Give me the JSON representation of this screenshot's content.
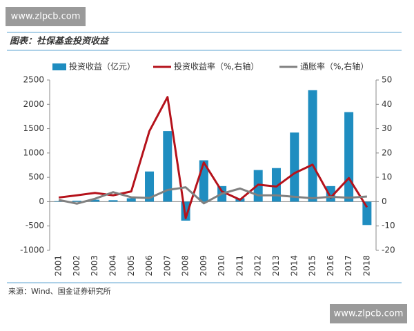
{
  "watermark": "www.zlpcb.com",
  "source": "来源：Wind、国金证券研究所",
  "chart_data": {
    "type": "bar",
    "title": "图表：社保基金投资收益",
    "categories": [
      "2001",
      "2002",
      "2003",
      "2004",
      "2005",
      "2006",
      "2007",
      "2008",
      "2009",
      "2010",
      "2011",
      "2012",
      "2013",
      "2014",
      "2015",
      "2016",
      "2017",
      "2018"
    ],
    "series": [
      {
        "name": "投资收益（亿元）",
        "type": "bar",
        "color": "#1f8dc0",
        "axis": "y",
        "values": [
          10,
          20,
          40,
          30,
          70,
          620,
          1450,
          -390,
          850,
          320,
          70,
          650,
          690,
          1420,
          2290,
          320,
          1840,
          -480
        ]
      },
      {
        "name": "投资收益率（%,右轴）",
        "type": "line",
        "color": "#b5121b",
        "axis": "y2",
        "values": [
          1.7,
          2.6,
          3.6,
          2.6,
          4.2,
          29,
          43,
          -6.8,
          16.1,
          4.2,
          0.8,
          7,
          6.2,
          11.7,
          15.2,
          1.7,
          9.7,
          -2.3
        ]
      },
      {
        "name": "通胀率（%,右轴）",
        "type": "line",
        "color": "#808080",
        "axis": "y2",
        "values": [
          0.7,
          -0.8,
          1.2,
          3.9,
          1.8,
          1.5,
          4.8,
          5.9,
          -0.7,
          3.3,
          5.4,
          2.6,
          2.6,
          2.0,
          1.4,
          2.0,
          1.6,
          2.1
        ]
      }
    ],
    "ylim": [
      -1000,
      2500
    ],
    "yticks": [
      -1000,
      -500,
      0,
      500,
      1000,
      1500,
      2000,
      2500
    ],
    "y2lim": [
      -20,
      50
    ],
    "y2ticks": [
      -20,
      -10,
      0,
      10,
      20,
      30,
      40,
      50
    ]
  }
}
